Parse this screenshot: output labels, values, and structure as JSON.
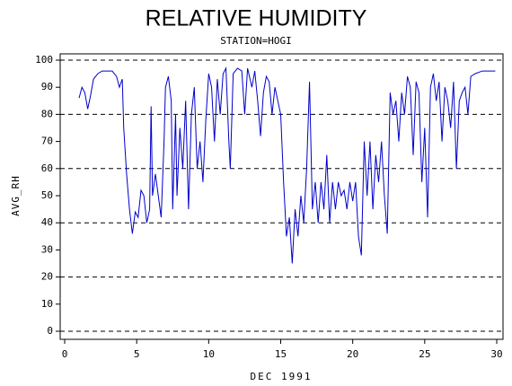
{
  "chart_data": {
    "type": "line",
    "title": "RELATIVE HUMIDITY",
    "subtitle": "STATION=HOGI",
    "x_label": "DEC 1991",
    "y_label": "AVG_RH",
    "color": "#0000cc",
    "x": [
      1.0,
      1.2,
      1.4,
      1.6,
      1.8,
      2.0,
      2.3,
      2.6,
      3.0,
      3.3,
      3.6,
      3.8,
      4.0,
      4.1,
      4.3,
      4.5,
      4.7,
      4.9,
      5.1,
      5.3,
      5.5,
      5.7,
      5.9,
      6.0,
      6.1,
      6.3,
      6.5,
      6.7,
      6.9,
      7.0,
      7.2,
      7.4,
      7.5,
      7.7,
      7.8,
      8.0,
      8.2,
      8.4,
      8.6,
      8.8,
      9.0,
      9.2,
      9.4,
      9.6,
      9.8,
      10.0,
      10.2,
      10.4,
      10.6,
      10.8,
      11.0,
      11.2,
      11.4,
      11.5,
      11.7,
      12.0,
      12.3,
      12.5,
      12.7,
      13.0,
      13.2,
      13.4,
      13.6,
      13.8,
      14.0,
      14.2,
      14.4,
      14.6,
      14.8,
      15.0,
      15.2,
      15.4,
      15.6,
      15.8,
      16.0,
      16.2,
      16.4,
      16.6,
      16.8,
      17.0,
      17.2,
      17.4,
      17.6,
      17.8,
      18.0,
      18.2,
      18.4,
      18.6,
      18.8,
      19.0,
      19.2,
      19.4,
      19.6,
      19.8,
      20.0,
      20.2,
      20.4,
      20.6,
      20.8,
      21.0,
      21.2,
      21.4,
      21.6,
      21.8,
      22.0,
      22.2,
      22.4,
      22.6,
      22.8,
      23.0,
      23.2,
      23.4,
      23.6,
      23.8,
      24.0,
      24.2,
      24.4,
      24.6,
      24.8,
      25.0,
      25.2,
      25.4,
      25.6,
      25.8,
      26.0,
      26.2,
      26.4,
      26.6,
      26.8,
      27.0,
      27.2,
      27.4,
      27.6,
      27.8,
      28.0,
      28.2,
      28.5,
      29.0,
      29.5,
      29.9
    ],
    "values": [
      86,
      90,
      88,
      82,
      87,
      93,
      95,
      96,
      96,
      96,
      94,
      90,
      93,
      75,
      58,
      45,
      36,
      44,
      42,
      52,
      50,
      40,
      45,
      83,
      50,
      58,
      50,
      42,
      70,
      90,
      94,
      85,
      45,
      80,
      50,
      75,
      60,
      85,
      45,
      80,
      90,
      60,
      70,
      55,
      78,
      95,
      90,
      70,
      93,
      80,
      95,
      97,
      70,
      60,
      95,
      97,
      96,
      80,
      97,
      90,
      96,
      85,
      72,
      88,
      94,
      92,
      80,
      90,
      85,
      80,
      55,
      35,
      42,
      25,
      45,
      35,
      50,
      40,
      60,
      92,
      45,
      55,
      40,
      55,
      45,
      65,
      40,
      55,
      45,
      55,
      50,
      52,
      45,
      55,
      48,
      55,
      35,
      28,
      70,
      50,
      70,
      45,
      65,
      55,
      70,
      50,
      36,
      88,
      80,
      85,
      70,
      88,
      80,
      94,
      90,
      65,
      92,
      88,
      55,
      75,
      42,
      90,
      95,
      85,
      92,
      70,
      90,
      85,
      75,
      92,
      60,
      85,
      88,
      90,
      80,
      94,
      95,
      96,
      96,
      96
    ],
    "xlim": [
      0,
      30
    ],
    "xticks": [
      0,
      5,
      10,
      15,
      20,
      25,
      30
    ],
    "ylim": [
      0,
      100
    ],
    "yticks": [
      0,
      10,
      20,
      30,
      40,
      50,
      60,
      70,
      80,
      90,
      100
    ],
    "gridlines": [
      0,
      20,
      40,
      60,
      80,
      100
    ]
  }
}
